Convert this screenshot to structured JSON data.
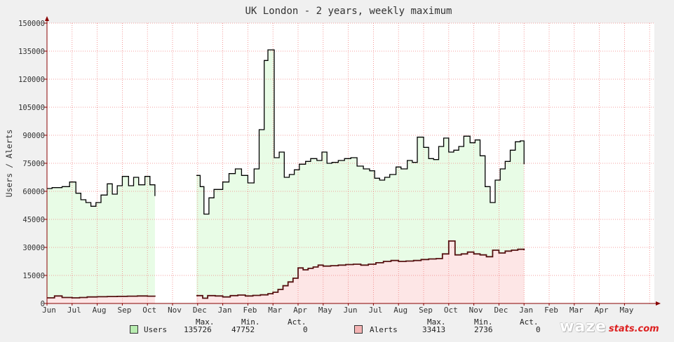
{
  "chart_data": {
    "type": "area",
    "title": "UK London - 2 years, weekly maximum",
    "ylabel": "Users / Alerts",
    "xlabel": "",
    "ylim": [
      0,
      150000
    ],
    "yticks": [
      "0",
      "15000",
      "30000",
      "45000",
      "60000",
      "75000",
      "90000",
      "105000",
      "120000",
      "135000",
      "150000"
    ],
    "month_labels": [
      "Jun",
      "Jul",
      "Aug",
      "Sep",
      "Oct",
      "Nov",
      "Dec",
      "Jan",
      "Feb",
      "Mar",
      "Apr",
      "May",
      "Jun",
      "Jul",
      "Aug",
      "Sep",
      "Oct",
      "Nov",
      "Dec",
      "Jan",
      "Feb",
      "Mar",
      "Apr",
      "May"
    ],
    "grid": true,
    "x_unit": "months since start of first Jun",
    "colors": {
      "users_fill": "#e8fce6",
      "alerts_fill": "#fde6e6",
      "users_line": "#000000",
      "alerts_line": "#551111",
      "grid": "#f08080",
      "background": "#ffffff",
      "axis": "#880000",
      "users_swatch": "#b8ecb0",
      "alerts_swatch": "#f4b4b4"
    },
    "series": [
      {
        "name": "Users",
        "points": [
          [
            0,
            61500
          ],
          [
            0.2,
            62000
          ],
          [
            0.6,
            62500
          ],
          [
            0.9,
            65000
          ],
          [
            1.15,
            59000
          ],
          [
            1.35,
            55500
          ],
          [
            1.55,
            54000
          ],
          [
            1.75,
            52000
          ],
          [
            1.95,
            54000
          ],
          [
            2.15,
            58000
          ],
          [
            2.4,
            64000
          ],
          [
            2.6,
            58500
          ],
          [
            2.8,
            63000
          ],
          [
            3.0,
            68000
          ],
          [
            3.25,
            63000
          ],
          [
            3.45,
            67500
          ],
          [
            3.65,
            63500
          ],
          [
            3.9,
            68000
          ],
          [
            4.1,
            63500
          ],
          [
            4.3,
            57500
          ],
          [
            null,
            null
          ],
          [
            5.95,
            68500
          ],
          [
            6.1,
            62500
          ],
          [
            6.25,
            47800
          ],
          [
            6.45,
            56500
          ],
          [
            6.65,
            61000
          ],
          [
            7.0,
            65000
          ],
          [
            7.25,
            69500
          ],
          [
            7.5,
            72000
          ],
          [
            7.75,
            68500
          ],
          [
            8.0,
            64500
          ],
          [
            8.25,
            72000
          ],
          [
            8.45,
            93000
          ],
          [
            8.65,
            130000
          ],
          [
            8.8,
            135700
          ],
          [
            9.05,
            78000
          ],
          [
            9.25,
            81000
          ],
          [
            9.45,
            67500
          ],
          [
            9.65,
            69000
          ],
          [
            9.85,
            71500
          ],
          [
            10.05,
            74500
          ],
          [
            10.3,
            76000
          ],
          [
            10.5,
            77500
          ],
          [
            10.75,
            76500
          ],
          [
            10.95,
            81000
          ],
          [
            11.15,
            75000
          ],
          [
            11.35,
            75500
          ],
          [
            11.6,
            76500
          ],
          [
            11.85,
            77500
          ],
          [
            12.1,
            78000
          ],
          [
            12.35,
            73500
          ],
          [
            12.6,
            72000
          ],
          [
            12.85,
            71000
          ],
          [
            13.05,
            67000
          ],
          [
            13.25,
            66000
          ],
          [
            13.45,
            67500
          ],
          [
            13.65,
            69000
          ],
          [
            13.9,
            73000
          ],
          [
            14.1,
            72000
          ],
          [
            14.35,
            76500
          ],
          [
            14.55,
            75500
          ],
          [
            14.75,
            89000
          ],
          [
            15.0,
            83500
          ],
          [
            15.2,
            77500
          ],
          [
            15.4,
            77000
          ],
          [
            15.6,
            84000
          ],
          [
            15.8,
            88500
          ],
          [
            16.0,
            81000
          ],
          [
            16.2,
            82000
          ],
          [
            16.4,
            84000
          ],
          [
            16.6,
            89500
          ],
          [
            16.85,
            86000
          ],
          [
            17.05,
            87500
          ],
          [
            17.25,
            79000
          ],
          [
            17.45,
            62500
          ],
          [
            17.65,
            54000
          ],
          [
            17.85,
            66000
          ],
          [
            18.05,
            72000
          ],
          [
            18.25,
            76000
          ],
          [
            18.45,
            82000
          ],
          [
            18.65,
            86500
          ],
          [
            18.85,
            87000
          ],
          [
            19.0,
            74500
          ]
        ]
      },
      {
        "name": "Alerts",
        "points": [
          [
            0,
            3000
          ],
          [
            0.3,
            4000
          ],
          [
            0.6,
            3200
          ],
          [
            1.0,
            3000
          ],
          [
            1.3,
            3200
          ],
          [
            1.6,
            3500
          ],
          [
            2.0,
            3600
          ],
          [
            2.4,
            3700
          ],
          [
            2.8,
            3800
          ],
          [
            3.2,
            3900
          ],
          [
            3.6,
            4000
          ],
          [
            4.0,
            3900
          ],
          [
            4.3,
            3600
          ],
          [
            null,
            null
          ],
          [
            5.95,
            4200
          ],
          [
            6.2,
            2800
          ],
          [
            6.4,
            4200
          ],
          [
            6.7,
            4000
          ],
          [
            7.0,
            3500
          ],
          [
            7.3,
            4200
          ],
          [
            7.6,
            4500
          ],
          [
            7.9,
            4000
          ],
          [
            8.2,
            4300
          ],
          [
            8.5,
            4600
          ],
          [
            8.8,
            5200
          ],
          [
            9.0,
            6000
          ],
          [
            9.2,
            7500
          ],
          [
            9.4,
            9500
          ],
          [
            9.6,
            11500
          ],
          [
            9.8,
            13500
          ],
          [
            10.0,
            19000
          ],
          [
            10.2,
            18000
          ],
          [
            10.4,
            18800
          ],
          [
            10.6,
            19500
          ],
          [
            10.8,
            20500
          ],
          [
            11.0,
            20000
          ],
          [
            11.3,
            20200
          ],
          [
            11.6,
            20500
          ],
          [
            11.9,
            20800
          ],
          [
            12.2,
            21000
          ],
          [
            12.5,
            20500
          ],
          [
            12.8,
            21000
          ],
          [
            13.1,
            21800
          ],
          [
            13.4,
            22500
          ],
          [
            13.7,
            23000
          ],
          [
            14.0,
            22500
          ],
          [
            14.3,
            22700
          ],
          [
            14.6,
            23000
          ],
          [
            14.9,
            23500
          ],
          [
            15.2,
            23800
          ],
          [
            15.5,
            24000
          ],
          [
            15.75,
            26500
          ],
          [
            16.0,
            33400
          ],
          [
            16.25,
            26000
          ],
          [
            16.5,
            26500
          ],
          [
            16.75,
            27500
          ],
          [
            17.0,
            26500
          ],
          [
            17.25,
            26000
          ],
          [
            17.5,
            25000
          ],
          [
            17.75,
            28500
          ],
          [
            18.0,
            27000
          ],
          [
            18.25,
            28000
          ],
          [
            18.5,
            28500
          ],
          [
            18.75,
            29000
          ],
          [
            19.0,
            28500
          ]
        ]
      }
    ]
  },
  "footer": {
    "users": {
      "label": "Users",
      "max": "135726",
      "min": "47752",
      "act": "0"
    },
    "alerts": {
      "label": "Alerts",
      "max": "33413",
      "min": "2736",
      "act": "0"
    },
    "col_max": "Max.",
    "col_min": "Min.",
    "col_act": "Act."
  },
  "logo": {
    "main": "waze",
    "sub": "stats.com"
  }
}
